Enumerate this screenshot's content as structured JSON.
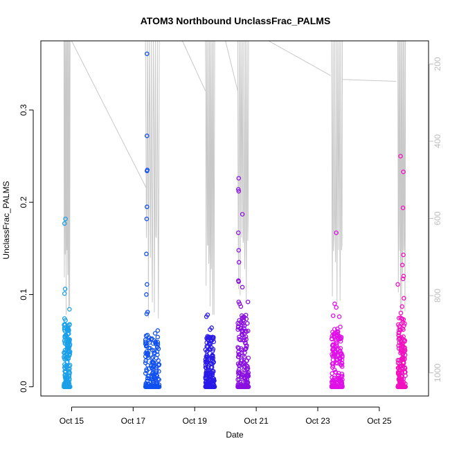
{
  "chart_data": {
    "type": "scatter",
    "title": "ATOM3 Northbound UnclassFrac_PALMS",
    "xlabel": "Date",
    "ylabel": "UnclassFrac_PALMS",
    "x_unit": "day of October (UTC)",
    "xlim": [
      14.0,
      26.6
    ],
    "ylim": [
      -0.01,
      0.375
    ],
    "x_ticks": [
      15,
      17,
      19,
      21,
      23,
      25
    ],
    "x_tick_labels": [
      "Oct 15",
      "Oct 17",
      "Oct 19",
      "Oct 21",
      "Oct 23",
      "Oct 25"
    ],
    "y_ticks": [
      0.0,
      0.1,
      0.2,
      0.3
    ],
    "y_tick_labels": [
      "0.0",
      "0.1",
      "0.2",
      "0.3"
    ],
    "y2_label": "",
    "y2_lim": [
      1060,
      140
    ],
    "y2_ticks": [
      200,
      400,
      600,
      800,
      1000
    ],
    "y2_tick_labels": [
      "200",
      "400",
      "600",
      "800",
      "1000"
    ],
    "grid": false,
    "legend": "none",
    "colors": {
      "flight1": "#1aa0e8",
      "flight2": "#1050f0",
      "flight3": "#2a1ae8",
      "flight4": "#8a10e0",
      "flight5": "#e010e8",
      "flight6": "#f010c0",
      "altitude_line": "#c8c8c8",
      "axis": "#000000"
    },
    "flights": [
      {
        "x_start": 14.75,
        "x_end": 14.95,
        "color": "#1aa0e8",
        "highlights": [
          [
            14.8,
            0.182
          ],
          [
            14.77,
            0.177
          ],
          [
            14.79,
            0.106
          ],
          [
            14.77,
            0.101
          ],
          [
            14.93,
            0.084
          ],
          [
            14.77,
            0.074
          ],
          [
            14.8,
            0.072
          ]
        ],
        "dense_max": 0.068
      },
      {
        "x_start": 17.4,
        "x_end": 17.85,
        "color": "#1050f0",
        "highlights": [
          [
            17.45,
            0.361
          ],
          [
            17.45,
            0.272
          ],
          [
            17.46,
            0.235
          ],
          [
            17.45,
            0.234
          ],
          [
            17.45,
            0.195
          ],
          [
            17.44,
            0.182
          ],
          [
            17.43,
            0.144
          ],
          [
            17.45,
            0.111
          ],
          [
            17.43,
            0.1
          ],
          [
            17.47,
            0.081
          ],
          [
            17.44,
            0.079
          ],
          [
            17.8,
            0.061
          ]
        ],
        "dense_max": 0.058
      },
      {
        "x_start": 19.35,
        "x_end": 19.65,
        "color": "#2a1ae8",
        "highlights": [
          [
            19.42,
            0.078
          ],
          [
            19.38,
            0.076
          ],
          [
            19.55,
            0.064
          ],
          [
            19.5,
            0.062
          ]
        ],
        "dense_max": 0.055
      },
      {
        "x_start": 20.4,
        "x_end": 20.75,
        "color": "#8a10e0",
        "highlights": [
          [
            20.43,
            0.226
          ],
          [
            20.42,
            0.214
          ],
          [
            20.43,
            0.212
          ],
          [
            20.55,
            0.187
          ],
          [
            20.42,
            0.167
          ],
          [
            20.43,
            0.148
          ],
          [
            20.44,
            0.135
          ],
          [
            20.42,
            0.115
          ],
          [
            20.43,
            0.114
          ],
          [
            20.55,
            0.108
          ],
          [
            20.73,
            0.092
          ],
          [
            20.43,
            0.092
          ],
          [
            20.46,
            0.09
          ],
          [
            20.5,
            0.087
          ]
        ],
        "dense_max": 0.078
      },
      {
        "x_start": 23.45,
        "x_end": 23.8,
        "color": "#e010e8",
        "highlights": [
          [
            23.6,
            0.167
          ],
          [
            23.55,
            0.09
          ],
          [
            23.6,
            0.086
          ],
          [
            23.5,
            0.077
          ],
          [
            23.7,
            0.076
          ]
        ],
        "dense_max": 0.065
      },
      {
        "x_start": 25.6,
        "x_end": 25.85,
        "color": "#f010c0",
        "highlights": [
          [
            25.69,
            0.25
          ],
          [
            25.78,
            0.233
          ],
          [
            25.77,
            0.194
          ],
          [
            25.78,
            0.143
          ],
          [
            25.75,
            0.132
          ],
          [
            25.79,
            0.12
          ],
          [
            25.77,
            0.117
          ],
          [
            25.6,
            0.111
          ],
          [
            25.8,
            0.096
          ],
          [
            25.74,
            0.087
          ],
          [
            25.7,
            0.08
          ]
        ],
        "dense_max": 0.075
      }
    ]
  }
}
